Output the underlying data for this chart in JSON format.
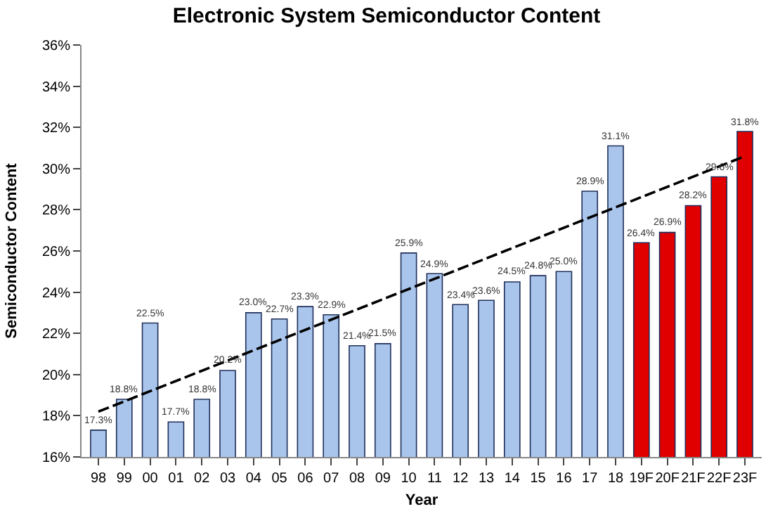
{
  "chart_data": {
    "type": "bar",
    "title": "Electronic System Semiconductor Content",
    "xlabel": "Year",
    "ylabel": "Semiconductor Content",
    "categories": [
      "98",
      "99",
      "00",
      "01",
      "02",
      "03",
      "04",
      "05",
      "06",
      "07",
      "08",
      "09",
      "10",
      "11",
      "12",
      "13",
      "14",
      "15",
      "16",
      "17",
      "18",
      "19F",
      "20F",
      "21F",
      "22F",
      "23F"
    ],
    "series": [
      {
        "values": [
          17.3,
          18.8,
          22.5,
          17.7,
          18.8,
          20.2,
          23.0,
          22.7,
          23.3,
          22.9,
          21.4,
          21.5,
          25.9,
          24.9,
          23.4,
          23.6,
          24.5,
          24.8,
          25.0,
          28.9,
          31.1,
          26.4,
          26.9,
          28.2,
          29.6,
          31.8
        ],
        "colors": [
          "#a9c5eb",
          "#a9c5eb",
          "#a9c5eb",
          "#a9c5eb",
          "#a9c5eb",
          "#a9c5eb",
          "#a9c5eb",
          "#a9c5eb",
          "#a9c5eb",
          "#a9c5eb",
          "#a9c5eb",
          "#a9c5eb",
          "#a9c5eb",
          "#a9c5eb",
          "#a9c5eb",
          "#a9c5eb",
          "#a9c5eb",
          "#a9c5eb",
          "#a9c5eb",
          "#a9c5eb",
          "#a9c5eb",
          "#e00000",
          "#e00000",
          "#e00000",
          "#e00000",
          "#e00000"
        ],
        "value_labels": [
          "17.3%",
          "18.8%",
          "22.5%",
          "17.7%",
          "18.8%",
          "20.2%",
          "23.0%",
          "22.7%",
          "23.3%",
          "22.9%",
          "21.4%",
          "21.5%",
          "25.9%",
          "24.9%",
          "23.4%",
          "23.6%",
          "24.5%",
          "24.8%",
          "25.0%",
          "28.9%",
          "31.1%",
          "26.4%",
          "26.9%",
          "28.2%",
          "29.6%",
          "31.8%"
        ]
      },
      {
        "type": "line",
        "x": [
          "98",
          "23F"
        ],
        "values": [
          18.2,
          30.6
        ],
        "color": "#000000",
        "line_style": "dashed"
      }
    ],
    "ylim": [
      16,
      36
    ],
    "yticks": [
      {
        "value": 16,
        "label": "16%"
      },
      {
        "value": 18,
        "label": "18%"
      },
      {
        "value": 20,
        "label": "20%"
      },
      {
        "value": 22,
        "label": "22%"
      },
      {
        "value": 24,
        "label": "24%"
      },
      {
        "value": 26,
        "label": "26%"
      },
      {
        "value": 28,
        "label": "28%"
      },
      {
        "value": 30,
        "label": "30%"
      },
      {
        "value": 32,
        "label": "32%"
      },
      {
        "value": 34,
        "label": "34%"
      },
      {
        "value": 36,
        "label": "36%"
      }
    ],
    "grid": false
  }
}
